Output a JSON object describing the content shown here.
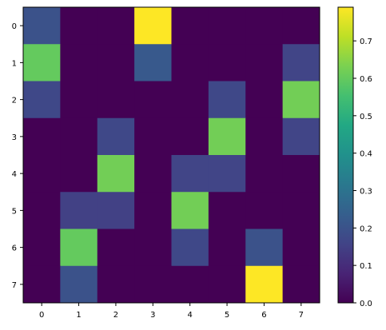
{
  "chart_data": {
    "type": "heatmap",
    "title": "",
    "xlabel": "",
    "ylabel": "",
    "x_categories": [
      "0",
      "1",
      "2",
      "3",
      "4",
      "5",
      "6",
      "7"
    ],
    "y_categories": [
      "0",
      "1",
      "2",
      "3",
      "4",
      "5",
      "6",
      "7"
    ],
    "colormap": "viridis",
    "vmin": 0.0,
    "vmax": 0.79,
    "values": [
      [
        0.2,
        0.0,
        0.0,
        0.79,
        0.0,
        0.0,
        0.0,
        0.0
      ],
      [
        0.6,
        0.0,
        0.0,
        0.22,
        0.0,
        0.0,
        0.0,
        0.16
      ],
      [
        0.17,
        0.0,
        0.0,
        0.0,
        0.0,
        0.17,
        0.0,
        0.62
      ],
      [
        0.0,
        0.0,
        0.17,
        0.0,
        0.0,
        0.62,
        0.0,
        0.16
      ],
      [
        0.0,
        0.0,
        0.62,
        0.0,
        0.16,
        0.16,
        0.0,
        0.0
      ],
      [
        0.0,
        0.15,
        0.15,
        0.0,
        0.62,
        0.0,
        0.0,
        0.0
      ],
      [
        0.0,
        0.6,
        0.0,
        0.0,
        0.17,
        0.0,
        0.2,
        0.0
      ],
      [
        0.0,
        0.2,
        0.0,
        0.0,
        0.0,
        0.0,
        0.79,
        0.0
      ]
    ],
    "colorbar": {
      "ticks": [
        "0.0",
        "0.1",
        "0.2",
        "0.3",
        "0.4",
        "0.5",
        "0.6",
        "0.7"
      ],
      "tick_values": [
        0.0,
        0.1,
        0.2,
        0.3,
        0.4,
        0.5,
        0.6,
        0.7
      ]
    },
    "grid": false
  }
}
